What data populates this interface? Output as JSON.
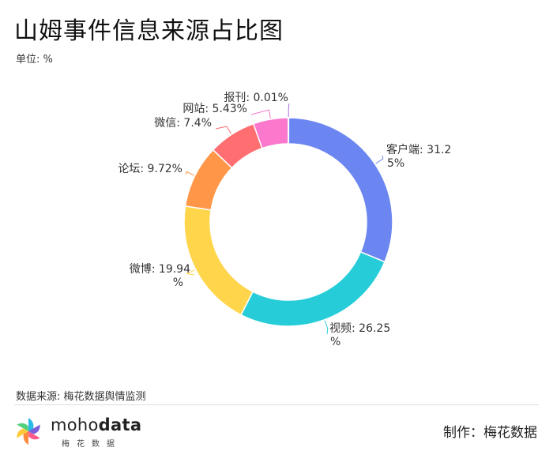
{
  "header": {
    "title": "山姆事件信息来源占比图",
    "unit": "单位: %"
  },
  "footer": {
    "source": "数据来源: 梅花数据舆情监测",
    "logo_word_light": "moho",
    "logo_word_bold": "data",
    "logo_sub": "梅花数据",
    "credit": "制作：梅花数据"
  },
  "chart_data": {
    "type": "pie",
    "donut": true,
    "categories": [
      "客户端",
      "视频",
      "微博",
      "论坛",
      "微信",
      "网站",
      "报刊"
    ],
    "values": [
      31.25,
      26.25,
      19.94,
      9.72,
      7.4,
      5.43,
      0.01
    ],
    "colors": [
      "#6b86f0",
      "#26cdd8",
      "#ffd54c",
      "#ff9648",
      "#ff6f72",
      "#fb78cc",
      "#a86ee6"
    ],
    "data_labels": [
      [
        "客户端: 31.2",
        "5%"
      ],
      [
        "视频: 26.25",
        "%"
      ],
      [
        "微博: 19.94",
        "%"
      ],
      [
        "论坛: 9.72%"
      ],
      [
        "微信: 7.4%"
      ],
      [
        "网站: 5.43%"
      ],
      [
        "报刊: 0.01%"
      ]
    ]
  }
}
